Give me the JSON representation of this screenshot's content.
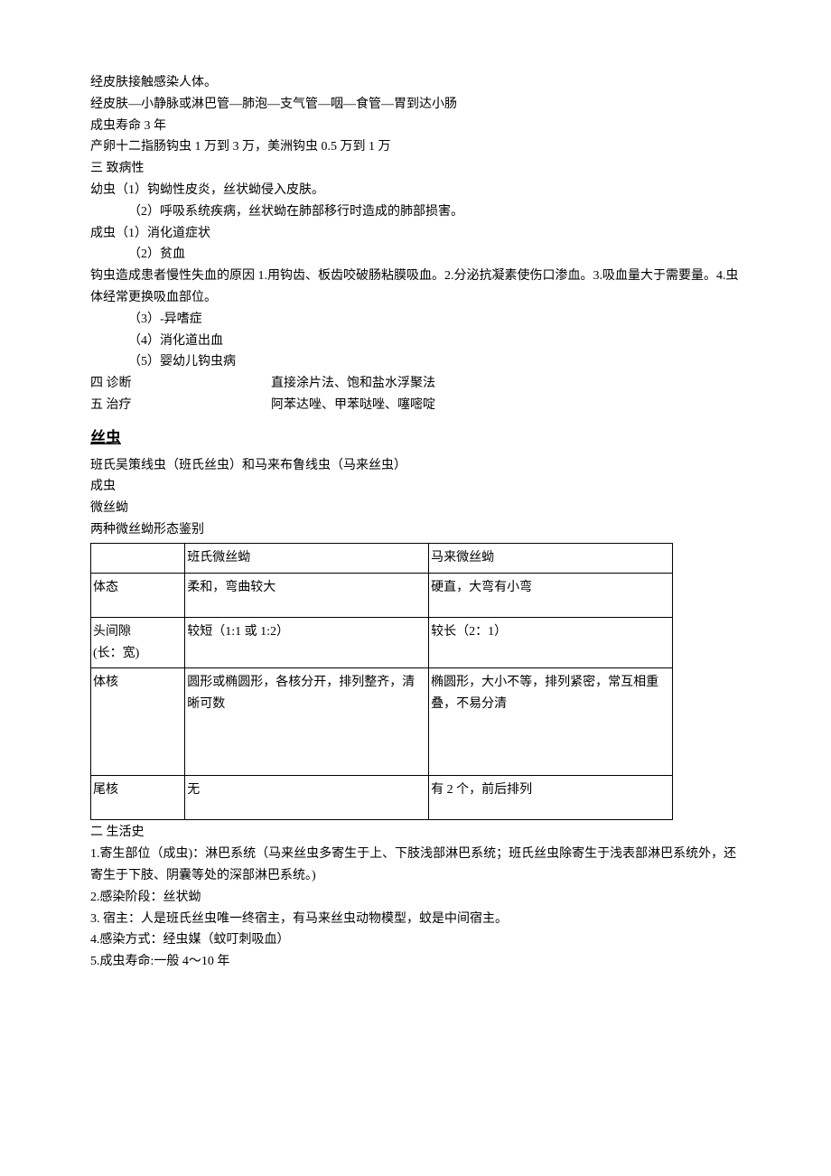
{
  "intro": {
    "l1": "经皮肤接触感染人体。",
    "l2": "经皮肤—小静脉或淋巴管—肺泡—支气管—咽—食管—胃到达小肠",
    "l3": "成虫寿命 3 年",
    "l4": "产卵十二指肠钩虫 1 万到 3 万，美洲钩虫 0.5 万到 1 万"
  },
  "path": {
    "title": "三  致病性",
    "larva_l1": "幼虫（1）钩蚴性皮炎，丝状蚴侵入皮肤。",
    "larva_l2": "（2）呼吸系统疾病，丝状蚴在肺部移行时造成的肺部损害。",
    "adult_l1": "成虫（1）消化道症状",
    "adult_l2": "（2）贫血",
    "anemia_cause": "钩虫造成患者慢性失血的原因 1.用钩齿、板齿咬破肠粘膜吸血。2.分泌抗凝素使伤口渗血。3.吸血量大于需要量。4.虫体经常更换吸血部位。",
    "adult_l3": "（3）-异嗜症",
    "adult_l4": "（4）消化道出血",
    "adult_l5": "（5）婴幼儿钩虫病"
  },
  "diag": {
    "label": "四  诊断",
    "content": "直接涂片法、饱和盐水浮聚法"
  },
  "treat": {
    "label": "五  治疗",
    "content": "阿苯达唑、甲苯哒唑、噻嘧啶"
  },
  "filaria": {
    "heading": "丝虫",
    "l1": "班氏吴策线虫（班氏丝虫）和马来布鲁线虫（马来丝虫）",
    "l2": "成虫",
    "l3": "微丝蚴",
    "l4": "两种微丝蚴形态鉴别"
  },
  "table": {
    "header": {
      "c0": "",
      "c1": "班氏微丝蚴",
      "c2": "马来微丝蚴"
    },
    "rows": [
      {
        "c0": "体态",
        "c1": "柔和，弯曲较大",
        "c2": "硬直，大弯有小弯"
      },
      {
        "c0": "头间隙\n(长：宽)",
        "c1": "较短（1:1 或 1:2）",
        "c2": "较长（2：1）"
      },
      {
        "c0": "体核",
        "c1": "圆形或椭圆形，各核分开，排列整齐，清晰可数",
        "c2": "椭圆形，大小不等，排列紧密，常互相重叠，不易分清"
      },
      {
        "c0": "尾核",
        "c1": "无",
        "c2": "有 2 个，前后排列"
      }
    ]
  },
  "life": {
    "title": "二  生活史",
    "l1": "1.寄生部位（成虫)：淋巴系统（马来丝虫多寄生于上、下肢浅部淋巴系统；班氏丝虫除寄生于浅表部淋巴系统外，还寄生于下肢、阴囊等处的深部淋巴系统。)",
    "l2": "2.感染阶段：丝状蚴",
    "l3": "3.  宿主：人是班氏丝虫唯一终宿主，有马来丝虫动物模型，蚊是中间宿主。",
    "l4": "4.感染方式：经虫媒（蚊叮刺吸血）",
    "l5": "5.成虫寿命:一般 4～10 年"
  }
}
